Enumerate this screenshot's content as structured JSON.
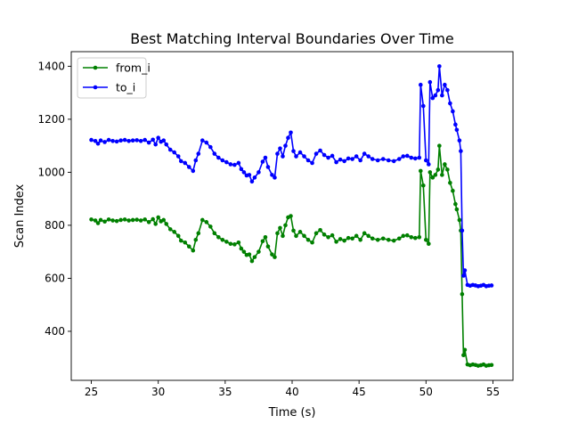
{
  "chart_data": {
    "type": "line",
    "title": "Best Matching Interval Boundaries Over Time",
    "xlabel": "Time (s)",
    "ylabel": "Scan Index",
    "xlim": [
      23.5,
      56.5
    ],
    "ylim": [
      215,
      1455
    ],
    "xticks": [
      25,
      30,
      35,
      40,
      45,
      50,
      55
    ],
    "yticks": [
      400,
      600,
      800,
      1000,
      1200,
      1400
    ],
    "grid": false,
    "legend": {
      "position": "upper left"
    },
    "series": [
      {
        "name": "from_i",
        "color": "#008000",
        "x": [
          25.0,
          25.3,
          25.5,
          25.7,
          26.0,
          26.3,
          26.6,
          26.9,
          27.2,
          27.5,
          27.8,
          28.1,
          28.4,
          28.7,
          29.0,
          29.3,
          29.6,
          29.8,
          30.0,
          30.2,
          30.4,
          30.6,
          30.9,
          31.2,
          31.5,
          31.7,
          32.0,
          32.3,
          32.6,
          32.8,
          33.0,
          33.3,
          33.6,
          33.9,
          34.2,
          34.5,
          34.8,
          35.1,
          35.4,
          35.7,
          36.0,
          36.2,
          36.4,
          36.6,
          36.8,
          37.0,
          37.2,
          37.5,
          37.8,
          38.0,
          38.2,
          38.5,
          38.7,
          38.9,
          39.1,
          39.3,
          39.5,
          39.7,
          39.9,
          40.1,
          40.3,
          40.6,
          40.9,
          41.2,
          41.5,
          41.8,
          42.1,
          42.4,
          42.7,
          43.0,
          43.3,
          43.6,
          43.9,
          44.2,
          44.5,
          44.8,
          45.1,
          45.4,
          45.7,
          46.0,
          46.4,
          46.8,
          47.2,
          47.6,
          48.0,
          48.3,
          48.6,
          48.9,
          49.2,
          49.5,
          49.6,
          49.8,
          50.0,
          50.2,
          50.3,
          50.5,
          50.7,
          50.9,
          51.0,
          51.2,
          51.4,
          51.6,
          51.8,
          52.0,
          52.2,
          52.3,
          52.5,
          52.6,
          52.7,
          52.8,
          52.9,
          53.1,
          53.3,
          53.5,
          53.7,
          53.9,
          54.1,
          54.3,
          54.5,
          54.7,
          54.9
        ],
        "y": [
          822,
          818,
          808,
          820,
          814,
          822,
          818,
          816,
          820,
          822,
          818,
          820,
          821,
          818,
          822,
          812,
          823,
          805,
          830,
          815,
          820,
          805,
          785,
          775,
          760,
          742,
          735,
          720,
          705,
          745,
          770,
          820,
          812,
          795,
          770,
          755,
          745,
          738,
          730,
          728,
          735,
          712,
          700,
          688,
          690,
          665,
          680,
          700,
          740,
          755,
          720,
          690,
          680,
          770,
          790,
          760,
          800,
          830,
          835,
          780,
          760,
          775,
          760,
          745,
          735,
          770,
          782,
          765,
          755,
          762,
          738,
          748,
          742,
          752,
          750,
          760,
          745,
          770,
          760,
          750,
          745,
          750,
          745,
          742,
          750,
          760,
          762,
          755,
          752,
          755,
          1005,
          950,
          745,
          730,
          1000,
          980,
          990,
          1010,
          1100,
          990,
          1030,
          1010,
          960,
          930,
          880,
          860,
          820,
          780,
          540,
          310,
          330,
          275,
          272,
          275,
          273,
          270,
          272,
          275,
          270,
          272,
          273
        ],
        "x_extra": [],
        "y_extra": []
      },
      {
        "name": "to_i",
        "color": "#0000ff",
        "x": [
          25.0,
          25.3,
          25.5,
          25.7,
          26.0,
          26.3,
          26.6,
          26.9,
          27.2,
          27.5,
          27.8,
          28.1,
          28.4,
          28.7,
          29.0,
          29.3,
          29.6,
          29.8,
          30.0,
          30.2,
          30.4,
          30.6,
          30.9,
          31.2,
          31.5,
          31.7,
          32.0,
          32.3,
          32.6,
          32.8,
          33.0,
          33.3,
          33.6,
          33.9,
          34.2,
          34.5,
          34.8,
          35.1,
          35.4,
          35.7,
          36.0,
          36.2,
          36.4,
          36.6,
          36.8,
          37.0,
          37.2,
          37.5,
          37.8,
          38.0,
          38.2,
          38.5,
          38.7,
          38.9,
          39.1,
          39.3,
          39.5,
          39.7,
          39.9,
          40.1,
          40.3,
          40.6,
          40.9,
          41.2,
          41.5,
          41.8,
          42.1,
          42.4,
          42.7,
          43.0,
          43.3,
          43.6,
          43.9,
          44.2,
          44.5,
          44.8,
          45.1,
          45.4,
          45.7,
          46.0,
          46.4,
          46.8,
          47.2,
          47.6,
          48.0,
          48.3,
          48.6,
          48.9,
          49.2,
          49.5,
          49.6,
          49.8,
          50.0,
          50.2,
          50.3,
          50.5,
          50.7,
          50.9,
          51.0,
          51.2,
          51.4,
          51.6,
          51.8,
          52.0,
          52.2,
          52.3,
          52.5,
          52.6,
          52.7,
          52.8,
          52.9,
          53.1,
          53.3,
          53.5,
          53.7,
          53.9,
          54.1,
          54.3,
          54.5,
          54.7,
          54.9
        ],
        "y": [
          1122,
          1118,
          1108,
          1120,
          1114,
          1122,
          1118,
          1116,
          1120,
          1122,
          1118,
          1120,
          1121,
          1118,
          1122,
          1112,
          1123,
          1105,
          1130,
          1115,
          1120,
          1105,
          1085,
          1075,
          1060,
          1042,
          1035,
          1020,
          1005,
          1045,
          1070,
          1120,
          1112,
          1095,
          1070,
          1055,
          1045,
          1038,
          1030,
          1028,
          1035,
          1012,
          1000,
          988,
          990,
          965,
          980,
          1000,
          1040,
          1055,
          1020,
          990,
          980,
          1070,
          1090,
          1060,
          1100,
          1130,
          1150,
          1080,
          1060,
          1075,
          1060,
          1045,
          1035,
          1070,
          1082,
          1065,
          1055,
          1062,
          1038,
          1048,
          1042,
          1052,
          1050,
          1060,
          1045,
          1070,
          1060,
          1050,
          1045,
          1050,
          1045,
          1042,
          1050,
          1060,
          1062,
          1055,
          1052,
          1055,
          1330,
          1250,
          1045,
          1030,
          1340,
          1280,
          1290,
          1310,
          1400,
          1290,
          1330,
          1310,
          1260,
          1230,
          1180,
          1160,
          1120,
          1080,
          780,
          610,
          630,
          575,
          572,
          575,
          573,
          570,
          572,
          575,
          570,
          572,
          573
        ]
      }
    ]
  }
}
